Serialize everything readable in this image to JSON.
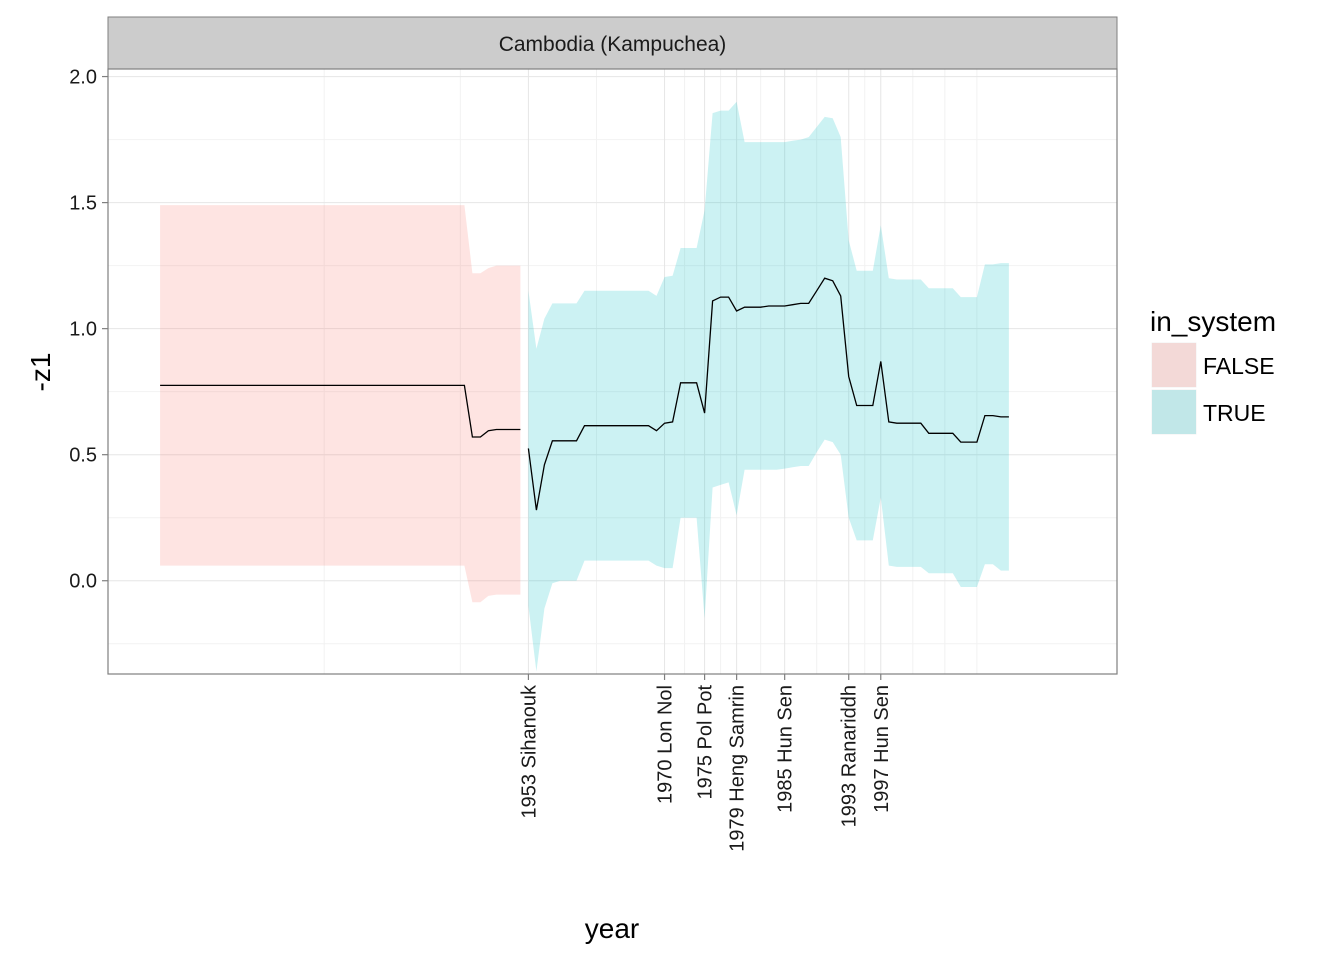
{
  "chart_data": {
    "type": "area",
    "facet_label": "Cambodia (Kampuchea)",
    "xlabel": "year",
    "ylabel": "-z1",
    "xlim": [
      1900.5,
      2026.5
    ],
    "ylim": [
      -0.37,
      2.03
    ],
    "y_ticks": [
      0.0,
      0.5,
      1.0,
      1.5,
      2.0
    ],
    "y_tick_labels": [
      "0.0",
      "0.5",
      "1.0",
      "1.5",
      "2.0"
    ],
    "x_ticks": [
      {
        "year": 1953,
        "label": "1953 Sihanouk"
      },
      {
        "year": 1970,
        "label": "1970 Lon Nol"
      },
      {
        "year": 1975,
        "label": "1975 Pol Pot"
      },
      {
        "year": 1979,
        "label": "1979 Heng Samrin"
      },
      {
        "year": 1985,
        "label": "1985 Hun Sen"
      },
      {
        "year": 1993,
        "label": "1993 Ranariddh"
      },
      {
        "year": 1997,
        "label": "1997 Hun Sen"
      }
    ],
    "grid": true,
    "legend": {
      "title": "in_system",
      "position": "right",
      "entries": [
        {
          "label": "FALSE",
          "color": "#F8766D"
        },
        {
          "label": "TRUE",
          "color": "#00BFC4"
        }
      ]
    },
    "series": [
      {
        "name": "FALSE",
        "color": "#F8766D",
        "x": [
          1907,
          1945,
          1946,
          1947,
          1948,
          1949,
          1950,
          1951,
          1952
        ],
        "y": [
          0.775,
          0.775,
          0.57,
          0.57,
          0.595,
          0.6,
          0.6,
          0.6,
          0.6
        ],
        "lower": [
          0.06,
          0.06,
          -0.085,
          -0.085,
          -0.06,
          -0.055,
          -0.055,
          -0.055,
          -0.055
        ],
        "upper": [
          1.49,
          1.49,
          1.22,
          1.22,
          1.24,
          1.25,
          1.25,
          1.25,
          1.25
        ]
      },
      {
        "name": "TRUE",
        "color": "#00BFC4",
        "x": [
          1953,
          1954,
          1955,
          1956,
          1957,
          1958,
          1959,
          1960,
          1961,
          1962,
          1963,
          1964,
          1965,
          1966,
          1967,
          1968,
          1969,
          1970,
          1971,
          1972,
          1973,
          1974,
          1975,
          1976,
          1977,
          1978,
          1979,
          1980,
          1981,
          1982,
          1983,
          1984,
          1985,
          1986,
          1987,
          1988,
          1989,
          1990,
          1991,
          1992,
          1993,
          1994,
          1995,
          1996,
          1997,
          1998,
          1999,
          2000,
          2001,
          2002,
          2003,
          2004,
          2005,
          2006,
          2007,
          2008,
          2009,
          2010,
          2011,
          2012,
          2013
        ],
        "y": [
          0.525,
          0.28,
          0.46,
          0.555,
          0.555,
          0.555,
          0.555,
          0.615,
          0.615,
          0.615,
          0.615,
          0.615,
          0.615,
          0.615,
          0.615,
          0.615,
          0.595,
          0.625,
          0.63,
          0.785,
          0.785,
          0.785,
          0.665,
          1.11,
          1.125,
          1.125,
          1.07,
          1.085,
          1.085,
          1.085,
          1.09,
          1.09,
          1.09,
          1.095,
          1.1,
          1.1,
          1.15,
          1.2,
          1.19,
          1.13,
          0.81,
          0.695,
          0.695,
          0.695,
          0.87,
          0.63,
          0.625,
          0.625,
          0.625,
          0.625,
          0.585,
          0.585,
          0.585,
          0.585,
          0.55,
          0.55,
          0.55,
          0.655,
          0.655,
          0.65,
          0.65
        ],
        "lower": [
          -0.1,
          -0.36,
          -0.11,
          -0.01,
          0.0,
          0.0,
          0.0,
          0.08,
          0.08,
          0.08,
          0.08,
          0.08,
          0.08,
          0.08,
          0.08,
          0.08,
          0.06,
          0.05,
          0.05,
          0.25,
          0.25,
          0.25,
          -0.15,
          0.37,
          0.38,
          0.39,
          0.26,
          0.44,
          0.44,
          0.44,
          0.44,
          0.44,
          0.445,
          0.45,
          0.455,
          0.455,
          0.51,
          0.56,
          0.55,
          0.5,
          0.25,
          0.16,
          0.16,
          0.16,
          0.33,
          0.06,
          0.055,
          0.055,
          0.055,
          0.055,
          0.03,
          0.03,
          0.03,
          0.03,
          -0.025,
          -0.025,
          -0.025,
          0.065,
          0.065,
          0.04,
          0.04
        ],
        "upper": [
          1.15,
          0.92,
          1.04,
          1.1,
          1.1,
          1.1,
          1.1,
          1.15,
          1.15,
          1.15,
          1.15,
          1.15,
          1.15,
          1.15,
          1.15,
          1.15,
          1.13,
          1.205,
          1.21,
          1.32,
          1.32,
          1.32,
          1.47,
          1.855,
          1.865,
          1.865,
          1.9,
          1.74,
          1.74,
          1.74,
          1.74,
          1.74,
          1.74,
          1.745,
          1.75,
          1.76,
          1.8,
          1.84,
          1.835,
          1.76,
          1.35,
          1.23,
          1.23,
          1.23,
          1.41,
          1.2,
          1.195,
          1.195,
          1.195,
          1.195,
          1.16,
          1.16,
          1.16,
          1.16,
          1.125,
          1.125,
          1.125,
          1.255,
          1.255,
          1.26,
          1.26
        ]
      }
    ]
  }
}
